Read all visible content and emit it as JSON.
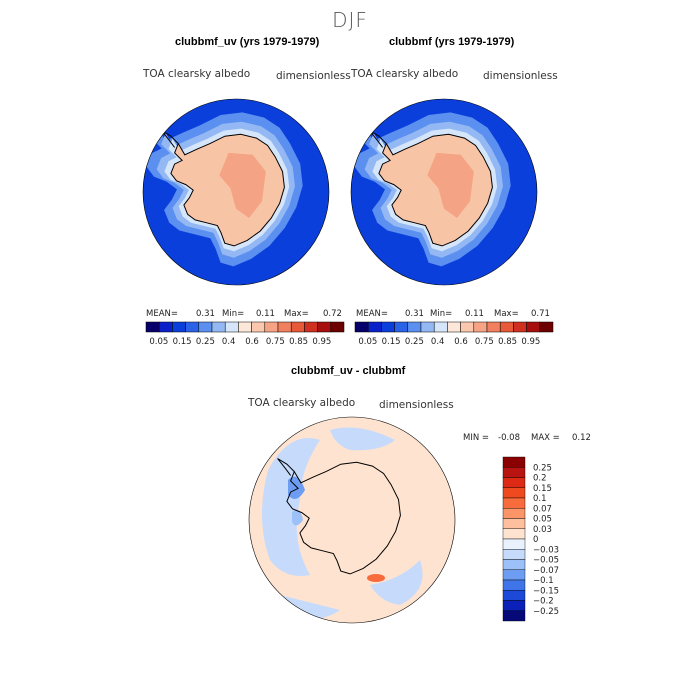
{
  "season": "DJF",
  "colors": {
    "ocean": "#0b3fdc",
    "land": "#f8c4a6",
    "interior": "#f4a384",
    "coastline": "#000000"
  },
  "chart_data": [
    {
      "type": "heatmap",
      "title": "clubbmf_uv (yrs 1979-1979)",
      "field": "TOA clearsky albedo",
      "units": "dimensionless",
      "stats": {
        "mean_label": "MEAN=",
        "mean": "0.31",
        "min_label": "Min=",
        "min": "0.11",
        "max_label": "Max=",
        "max": "0.72"
      },
      "colorbar": {
        "ticks": [
          "0.05",
          "0.15",
          "0.25",
          "0.4",
          "0.6",
          "0.75",
          "0.85",
          "0.95"
        ],
        "colors": [
          "#08006a",
          "#0a20c8",
          "#0b3fdc",
          "#2a63e8",
          "#5b8ff0",
          "#94b8f4",
          "#d5e6fb",
          "#fde7d8",
          "#fbc8ae",
          "#f7a385",
          "#f1805e",
          "#e65a3a",
          "#cf3020",
          "#a70f0f",
          "#6d0000"
        ]
      }
    },
    {
      "type": "heatmap",
      "title": "clubbmf (yrs 1979-1979)",
      "field": "TOA clearsky albedo",
      "units": "dimensionless",
      "stats": {
        "mean_label": "MEAN=",
        "mean": "0.31",
        "min_label": "Min=",
        "min": "0.11",
        "max_label": "Max=",
        "max": "0.71"
      },
      "colorbar": {
        "ticks": [
          "0.05",
          "0.15",
          "0.25",
          "0.4",
          "0.6",
          "0.75",
          "0.85",
          "0.95"
        ],
        "colors": [
          "#08006a",
          "#0a20c8",
          "#0b3fdc",
          "#2a63e8",
          "#5b8ff0",
          "#94b8f4",
          "#d5e6fb",
          "#fde7d8",
          "#fbc8ae",
          "#f7a385",
          "#f1805e",
          "#e65a3a",
          "#cf3020",
          "#a70f0f",
          "#6d0000"
        ]
      }
    },
    {
      "type": "heatmap",
      "title": "clubbmf_uv - clubbmf",
      "field": "TOA clearsky albedo",
      "units": "dimensionless",
      "stats": {
        "min_label": "MIN =",
        "min": "-0.08",
        "max_label": "MAX =",
        "max": "0.12"
      },
      "colorbar": {
        "ticks": [
          "0.25",
          "0.2",
          "0.15",
          "0.1",
          "0.07",
          "0.05",
          "0.03",
          "0",
          "−0.03",
          "−0.05",
          "−0.07",
          "−0.1",
          "−0.15",
          "−0.2",
          "−0.25"
        ],
        "colors": [
          "#8b0000",
          "#b71412",
          "#dc2a14",
          "#ef4a1f",
          "#f76b3c",
          "#fb9467",
          "#fdbf9e",
          "#fde3d0",
          "#e9f1fd",
          "#c6dbfb",
          "#9cc0f8",
          "#6d9df2",
          "#3f75e8",
          "#1d49d8",
          "#0a20b8",
          "#050a78"
        ]
      }
    }
  ]
}
